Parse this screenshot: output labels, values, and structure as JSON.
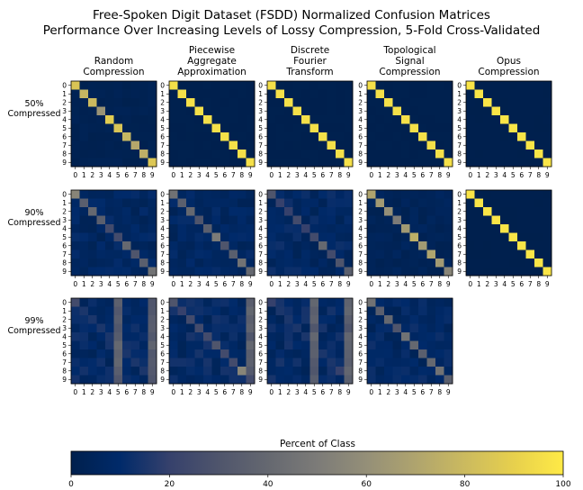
{
  "figure": {
    "title_line1": "Free-Spoken Digit Dataset (FSDD) Normalized Confusion Matrices",
    "title_line2": "Performance Over Increasing Levels of Lossy Compression, 5-Fold Cross-Validated"
  },
  "columns": [
    [
      "Random",
      "Compression"
    ],
    [
      "Piecewise",
      "Aggregate",
      "Approximation"
    ],
    [
      "Discrete",
      "Fourier",
      "Transform"
    ],
    [
      "Topological",
      "Signal",
      "Compression"
    ],
    [
      "Opus",
      "Compression"
    ]
  ],
  "rows": [
    [
      "50%",
      "Compressed"
    ],
    [
      "90%",
      "Compressed"
    ],
    [
      "99%",
      "Compressed"
    ]
  ],
  "colorbar": {
    "label": "Percent of Class",
    "ticks": [
      "0",
      "20",
      "40",
      "60",
      "80",
      "100"
    ],
    "range": [
      0,
      100
    ],
    "colormap": "cividis",
    "low_color": "#00204d",
    "mid_color": "#7c7b78",
    "high_color": "#ffea46"
  },
  "chart_data": {
    "type": "heatmap",
    "title": "Free-Spoken Digit Dataset (FSDD) Normalized Confusion Matrices Performance Over Increasing Levels of Lossy Compression, 5-Fold Cross-Validated",
    "class_labels": [
      "0",
      "1",
      "2",
      "3",
      "4",
      "5",
      "6",
      "7",
      "8",
      "9"
    ],
    "value_range": [
      0,
      100
    ],
    "colorbar_label": "Percent of Class",
    "matrices": [
      {
        "row": "50% Compressed",
        "method": "Random Compression",
        "diagonal": [
          85,
          78,
          80,
          62,
          88,
          85,
          78,
          72,
          75,
          86
        ],
        "off_diagonal_typical": 2
      },
      {
        "row": "50% Compressed",
        "method": "Piecewise Aggregate Approximation",
        "diagonal": [
          96,
          96,
          96,
          96,
          96,
          96,
          96,
          96,
          96,
          96
        ],
        "off_diagonal_typical": 0.5
      },
      {
        "row": "50% Compressed",
        "method": "Discrete Fourier Transform",
        "diagonal": [
          96,
          96,
          96,
          96,
          96,
          96,
          96,
          96,
          96,
          96
        ],
        "off_diagonal_typical": 0.5
      },
      {
        "row": "50% Compressed",
        "method": "Topological Signal Compression",
        "diagonal": [
          96,
          96,
          96,
          96,
          96,
          96,
          96,
          96,
          96,
          96
        ],
        "off_diagonal_typical": 0.5
      },
      {
        "row": "50% Compressed",
        "method": "Opus Compression",
        "diagonal": [
          98,
          98,
          98,
          98,
          98,
          98,
          98,
          98,
          98,
          98
        ],
        "off_diagonal_typical": 0.2
      },
      {
        "row": "90% Compressed",
        "method": "Random Compression",
        "diagonal": [
          55,
          35,
          40,
          35,
          25,
          25,
          40,
          30,
          35,
          45
        ],
        "off_diagonal_typical": 7
      },
      {
        "row": "90% Compressed",
        "method": "Piecewise Aggregate Approximation",
        "diagonal": [
          45,
          35,
          40,
          30,
          35,
          50,
          30,
          35,
          45,
          40
        ],
        "off_diagonal_typical": 7
      },
      {
        "row": "90% Compressed",
        "method": "Discrete Fourier Transform",
        "diagonal": [
          30,
          20,
          20,
          25,
          20,
          25,
          40,
          25,
          30,
          35
        ],
        "off_diagonal_typical": 8
      },
      {
        "row": "90% Compressed",
        "method": "Topological Signal Compression",
        "diagonal": [
          70,
          65,
          60,
          50,
          65,
          75,
          65,
          70,
          65,
          55
        ],
        "off_diagonal_typical": 4
      },
      {
        "row": "90% Compressed",
        "method": "Opus Compression",
        "diagonal": [
          98,
          98,
          98,
          98,
          98,
          98,
          98,
          98,
          98,
          98
        ],
        "off_diagonal_typical": 0.2
      },
      {
        "row": "99% Compressed",
        "method": "Random Compression",
        "diagonal": [
          25,
          15,
          15,
          15,
          15,
          40,
          15,
          15,
          15,
          30
        ],
        "off_diagonal_typical": 9,
        "note": "columns 5 and 9 elevated (~35)"
      },
      {
        "row": "99% Compressed",
        "method": "Piecewise Aggregate Approximation",
        "diagonal": [
          30,
          20,
          25,
          25,
          25,
          30,
          25,
          25,
          55,
          25
        ],
        "off_diagonal_typical": 9,
        "note": "column 9 elevated (~35)"
      },
      {
        "row": "99% Compressed",
        "method": "Discrete Fourier Transform",
        "diagonal": [
          20,
          15,
          15,
          15,
          15,
          35,
          15,
          15,
          20,
          35
        ],
        "off_diagonal_typical": 9,
        "note": "columns 5 and 9 elevated (~35)"
      },
      {
        "row": "99% Compressed",
        "method": "Topological Signal Compression",
        "diagonal": [
          45,
          35,
          40,
          30,
          45,
          40,
          35,
          40,
          45,
          35
        ],
        "off_diagonal_typical": 8
      }
    ]
  }
}
